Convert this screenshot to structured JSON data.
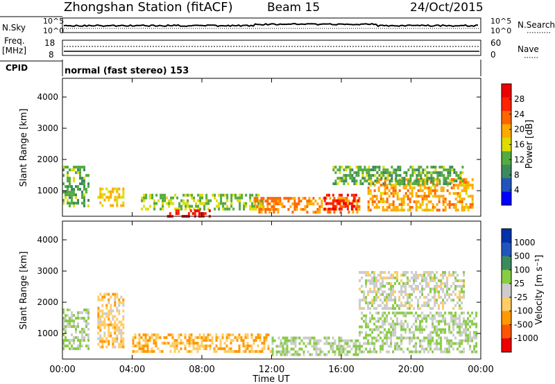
{
  "header": {
    "title": "Zhongshan Station (fitACF)",
    "beam": "Beam 15",
    "date": "24/Oct/2015"
  },
  "sky_panel": {
    "left_label": "N.Sky",
    "right_label": "N.Search",
    "left_ticks": [
      "10^5",
      "10^0"
    ],
    "right_ticks": [
      "10^5",
      "10^0"
    ]
  },
  "freq_panel": {
    "left_label_1": "Freq.",
    "left_label_2": "[MHz]",
    "right_label": "Nave",
    "left_ticks": [
      "18",
      "8"
    ],
    "right_ticks": [
      "60",
      "0"
    ]
  },
  "cpid": {
    "label": "CPID",
    "mode": "normal (fast stereo) 153"
  },
  "colors": {
    "power_scale": [
      "#0000ff",
      "#2255bb",
      "#3b8a5e",
      "#55aa40",
      "#dddd00",
      "#ffaa00",
      "#ff6600",
      "#ff2200",
      "#ee0000"
    ],
    "velocity_scale": [
      "#ee0000",
      "#ff5500",
      "#ff9900",
      "#ffcc66",
      "#cccccc",
      "#88cc44",
      "#3b8a5e",
      "#2255bb",
      "#0033aa"
    ]
  },
  "chart_data": [
    {
      "type": "heatmap",
      "quantity": "Power",
      "ylabel": "Slant Range [km]",
      "yticks": [
        "4000",
        "3000",
        "2000",
        "1000"
      ],
      "ylim": [
        180,
        4600
      ],
      "colorbar_label": "Power [dB]",
      "colorbar_ticks": [
        "28",
        "24",
        "20",
        "16",
        "12",
        "8",
        "4"
      ],
      "colorbar_range": [
        0,
        32
      ],
      "echo_bands": [
        {
          "t_start": 0.0,
          "t_end": 1.5,
          "range_min": 500,
          "range_max": 1800,
          "value": 12
        },
        {
          "t_start": 2.0,
          "t_end": 3.5,
          "range_min": 500,
          "range_max": 1100,
          "value": 18
        },
        {
          "t_start": 4.5,
          "t_end": 11.5,
          "range_min": 450,
          "range_max": 900,
          "value": 14
        },
        {
          "t_start": 6.0,
          "t_end": 8.5,
          "range_min": 200,
          "range_max": 400,
          "value": 28
        },
        {
          "t_start": 11.0,
          "t_end": 17.0,
          "range_min": 300,
          "range_max": 800,
          "value": 22
        },
        {
          "t_start": 15.0,
          "t_end": 17.0,
          "range_min": 450,
          "range_max": 900,
          "value": 28
        },
        {
          "t_start": 17.5,
          "t_end": 23.5,
          "range_min": 400,
          "range_max": 1400,
          "value": 20
        },
        {
          "t_start": 15.5,
          "t_end": 23.0,
          "range_min": 1200,
          "range_max": 1800,
          "value": 12
        }
      ]
    },
    {
      "type": "heatmap",
      "quantity": "Velocity",
      "ylabel": "Slant Range [km]",
      "yticks": [
        "4000",
        "3000",
        "2000",
        "1000"
      ],
      "ylim": [
        180,
        4600
      ],
      "colorbar_label": "Velocity [m s⁻¹]",
      "colorbar_ticks": [
        "1000",
        "500",
        "100",
        "25",
        "-25",
        "-100",
        "-500",
        "-1000"
      ],
      "colorbar_range": [
        -1200,
        1200
      ],
      "echo_bands": [
        {
          "t_start": 0.0,
          "t_end": 1.5,
          "range_min": 500,
          "range_max": 1800,
          "value": 150
        },
        {
          "t_start": 2.0,
          "t_end": 3.5,
          "range_min": 600,
          "range_max": 2300,
          "value": -300
        },
        {
          "t_start": 4.0,
          "t_end": 12.0,
          "range_min": 400,
          "range_max": 1000,
          "value": -400
        },
        {
          "t_start": 12.0,
          "t_end": 17.0,
          "range_min": 300,
          "range_max": 900,
          "value": 150
        },
        {
          "t_start": 17.0,
          "t_end": 23.8,
          "range_min": 400,
          "range_max": 1700,
          "value": 150
        },
        {
          "t_start": 17.0,
          "t_end": 23.0,
          "range_min": 1800,
          "range_max": 3000,
          "value": 0
        }
      ]
    }
  ],
  "xaxis": {
    "ticks": [
      "00:00",
      "04:00",
      "08:00",
      "12:00",
      "16:00",
      "20:00",
      "00:00"
    ],
    "range_hours": [
      0,
      24
    ],
    "label": "Time UT"
  }
}
